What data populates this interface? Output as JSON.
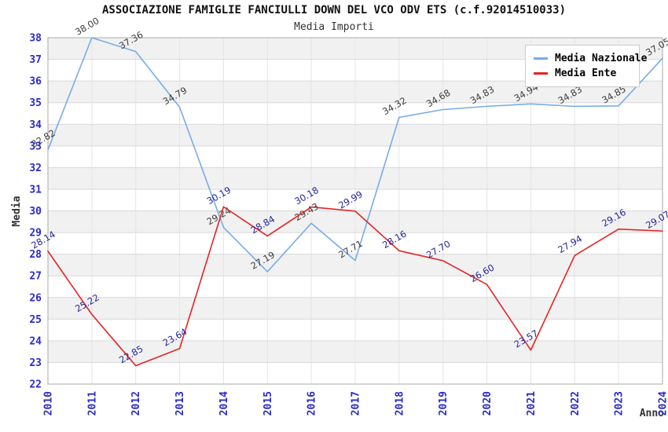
{
  "chart_data": {
    "type": "line",
    "title": "ASSOCIAZIONE FAMIGLIE FANCIULLI DOWN DEL VCO ODV ETS (c.f.92014510033)",
    "subtitle": "Media Importi",
    "xlabel": "Anno",
    "ylabel": "Media",
    "x": [
      2010,
      2011,
      2012,
      2013,
      2014,
      2015,
      2016,
      2017,
      2018,
      2019,
      2020,
      2021,
      2022,
      2023,
      2024
    ],
    "ylim": [
      22,
      38
    ],
    "y_tick_step": 1,
    "grid": "horizontal gridlines, alternating light-gray bands, faint vertical year gridlines",
    "legend_position": "top-right",
    "series": [
      {
        "name": "Media Nazionale",
        "color": "#76ace8",
        "label_color": "#3c3c3c",
        "values": [
          32.82,
          38.0,
          37.36,
          34.79,
          29.24,
          27.19,
          29.43,
          27.71,
          34.32,
          34.68,
          34.83,
          34.94,
          34.83,
          34.85,
          37.05
        ]
      },
      {
        "name": "Media Ente",
        "color": "#e42525",
        "label_color": "#24249b",
        "values": [
          28.14,
          25.22,
          22.85,
          23.64,
          30.19,
          28.84,
          30.18,
          29.99,
          28.16,
          27.7,
          26.6,
          23.57,
          27.94,
          29.16,
          29.07
        ]
      }
    ],
    "colors": {
      "tick_label": "#2a2acc",
      "band": "#f1f1f1",
      "gridline": "#d9d9d9",
      "vgridline": "#e5e5e5",
      "plot_border": "#ababab",
      "axis_title": "#333333",
      "title": "#111111",
      "subtitle": "#333333"
    }
  }
}
